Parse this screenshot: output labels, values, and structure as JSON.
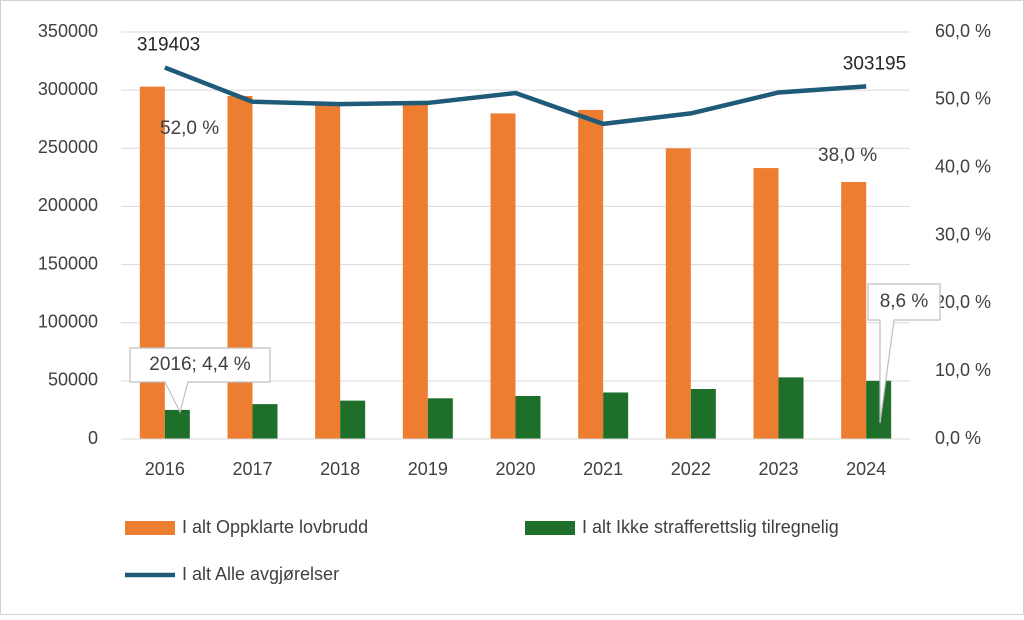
{
  "chart_data": {
    "type": "bar",
    "categories": [
      "2016",
      "2017",
      "2018",
      "2019",
      "2020",
      "2021",
      "2022",
      "2023",
      "2024"
    ],
    "series": [
      {
        "name": "I alt Oppklarte lovbrudd",
        "type": "bar",
        "color": "#ed7d31",
        "values": [
          303000,
          295000,
          288000,
          289000,
          280000,
          283000,
          250000,
          233000,
          221000
        ]
      },
      {
        "name": "I alt Ikke strafferettslig tilregnelig",
        "type": "bar",
        "color": "#1e6f2a",
        "values": [
          25000,
          30000,
          33000,
          35000,
          37000,
          40000,
          43000,
          53000,
          50000
        ]
      },
      {
        "name": "I alt Alle avgjørelser",
        "type": "line",
        "color": "#1f5a78",
        "values": [
          319403,
          290000,
          288000,
          289000,
          297500,
          271000,
          280000,
          298000,
          303195
        ],
        "value_labels": [
          "319403",
          null,
          null,
          null,
          null,
          null,
          null,
          null,
          "303195"
        ]
      }
    ],
    "ylim": [
      0,
      350000
    ],
    "yticks": [
      0,
      50000,
      100000,
      150000,
      200000,
      250000,
      300000,
      350000
    ],
    "y2lim": [
      0,
      60
    ],
    "y2ticks": [
      {
        "value": 0,
        "label": "0,0 %"
      },
      {
        "value": 10,
        "label": "10,0 %"
      },
      {
        "value": 20,
        "label": "20,0 %"
      },
      {
        "value": 30,
        "label": "30,0 %"
      },
      {
        "value": 40,
        "label": "40,0 %"
      },
      {
        "value": 50,
        "label": "50,0 %"
      },
      {
        "value": 60,
        "label": "60,0 %"
      }
    ],
    "annotations": [
      "52,0 %",
      "38,0 %",
      "2016; 4,4 %",
      "8,6 %"
    ],
    "grid": true,
    "legend": "bottom"
  }
}
